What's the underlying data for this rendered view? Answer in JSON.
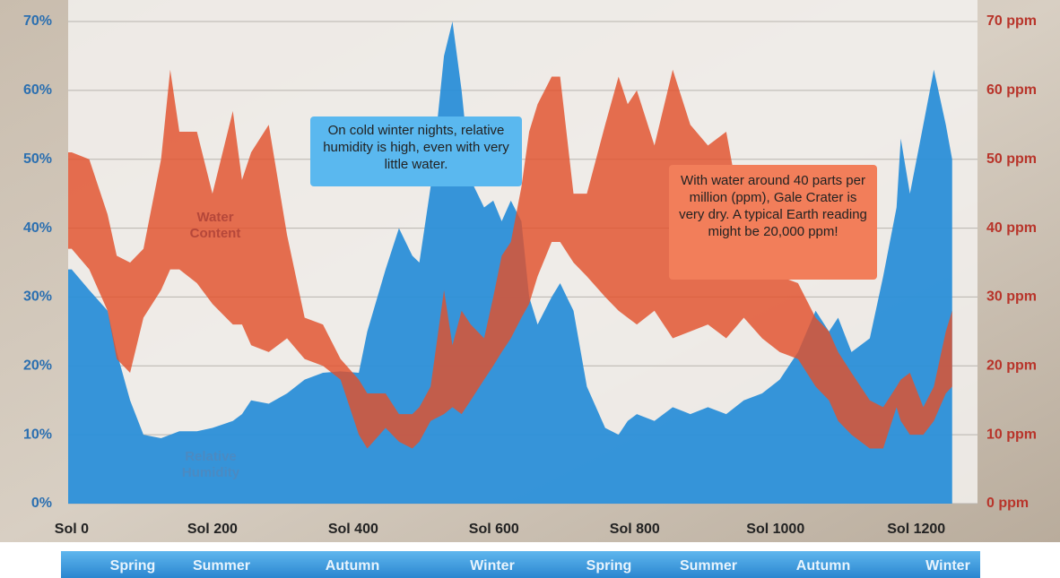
{
  "chart_data": {
    "type": "area-band",
    "annotations": [
      "On cold winter nights, relative humidity is high, even with very little water.",
      "With water around 40 parts per million (ppm), Gale Crater is very dry. A typical Earth reading might be 20,000 ppm!"
    ],
    "seasons": [
      "Spring",
      "Summer",
      "Autumn",
      "Winter",
      "Spring",
      "Summer",
      "Autumn",
      "Winter"
    ],
    "x": [
      -5,
      0,
      25,
      51,
      64,
      83,
      102,
      127,
      140,
      153,
      178,
      200,
      229,
      242,
      255,
      280,
      306,
      331,
      357,
      382,
      408,
      420,
      446,
      465,
      484,
      494,
      510,
      529,
      541,
      554,
      567,
      586,
      599,
      611,
      624,
      639,
      650,
      662,
      682,
      694,
      713,
      732,
      758,
      777,
      790,
      803,
      828,
      854,
      879,
      904,
      930,
      955,
      981,
      1006,
      1032,
      1057,
      1076,
      1089,
      1108,
      1134,
      1153,
      1172,
      1178,
      1191,
      1210,
      1225,
      1242,
      1251
    ],
    "series": [
      {
        "name": "Relative Humidity",
        "color": "#2b8fd8",
        "values": [
          34,
          34,
          31,
          28,
          22,
          15,
          10,
          9.5,
          10,
          10.5,
          10.5,
          11,
          12,
          13,
          15,
          14.5,
          16,
          18,
          19,
          19.2,
          19,
          25,
          34,
          40,
          36,
          35,
          46,
          65,
          70,
          60,
          47,
          43,
          44,
          41,
          44,
          41,
          30,
          26,
          30,
          32,
          28,
          17,
          11,
          10,
          12,
          13,
          12,
          14,
          13,
          14,
          13,
          15,
          16,
          18,
          22,
          28,
          25,
          27,
          22,
          24,
          33,
          43,
          53,
          45,
          55,
          63,
          55,
          50
        ]
      },
      {
        "name": "Water Content",
        "color": "#e2502c",
        "axis": "y2",
        "high": [
          51,
          51,
          50,
          42,
          36,
          35,
          37,
          50,
          63,
          54,
          54,
          45,
          57,
          47,
          51,
          55,
          39,
          27,
          26,
          21,
          18,
          16,
          16,
          13,
          13,
          14,
          17,
          31,
          23,
          28,
          26,
          24,
          30,
          36,
          38,
          46,
          54,
          58,
          62,
          62,
          45,
          45,
          55,
          62,
          58,
          60,
          52,
          63,
          55,
          52,
          54,
          40,
          35,
          33,
          32,
          27,
          25,
          22,
          19,
          15,
          14,
          17,
          18,
          19,
          14,
          17,
          25,
          28
        ],
        "low": [
          37,
          37,
          34,
          28,
          21,
          19,
          27,
          31,
          34,
          34,
          32,
          29,
          26,
          26,
          23,
          22,
          24,
          21,
          20,
          18,
          10,
          8,
          11,
          9,
          8,
          9,
          12,
          13,
          14,
          13,
          15,
          18,
          20,
          22,
          24,
          27,
          29,
          33,
          38,
          38,
          35,
          33,
          30,
          28,
          27,
          26,
          28,
          24,
          25,
          26,
          24,
          27,
          24,
          22,
          21,
          17,
          15,
          12,
          10,
          8,
          8,
          14,
          12,
          10,
          10,
          12,
          16,
          17
        ]
      }
    ],
    "xlim": [
      -5,
      1287
    ],
    "xticks": [
      {
        "value": 0,
        "label": "Sol 0"
      },
      {
        "value": 200,
        "label": "Sol 200"
      },
      {
        "value": 400,
        "label": "Sol 400"
      },
      {
        "value": 600,
        "label": "Sol 600"
      },
      {
        "value": 800,
        "label": "Sol 800"
      },
      {
        "value": 1000,
        "label": "Sol 1000"
      },
      {
        "value": 1200,
        "label": "Sol 1200"
      }
    ],
    "ylim": [
      0,
      70
    ],
    "yticks": [
      {
        "value": 0,
        "label": "0%"
      },
      {
        "value": 10,
        "label": "10%"
      },
      {
        "value": 20,
        "label": "20%"
      },
      {
        "value": 30,
        "label": "30%"
      },
      {
        "value": 40,
        "label": "40%"
      },
      {
        "value": 50,
        "label": "50%"
      },
      {
        "value": 60,
        "label": "60%"
      },
      {
        "value": 70,
        "label": "70%"
      }
    ],
    "y2lim": [
      0,
      70
    ],
    "y2ticks": [
      {
        "value": 0,
        "label": "0 ppm"
      },
      {
        "value": 10,
        "label": "10 ppm"
      },
      {
        "value": 20,
        "label": "20 ppm"
      },
      {
        "value": 30,
        "label": "30 ppm"
      },
      {
        "value": 40,
        "label": "40 ppm"
      },
      {
        "value": 50,
        "label": "50 ppm"
      },
      {
        "value": 60,
        "label": "60 ppm"
      },
      {
        "value": 70,
        "label": "70 ppm"
      }
    ],
    "grid": true
  }
}
